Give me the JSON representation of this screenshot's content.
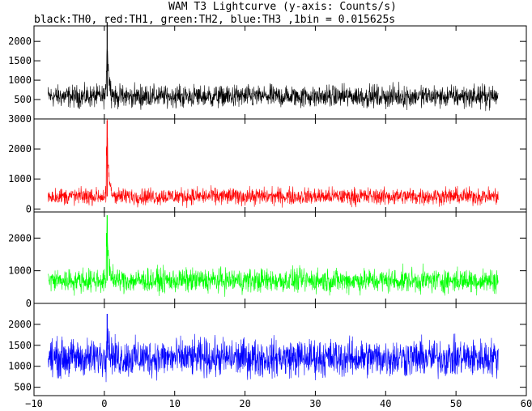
{
  "chart_data": {
    "type": "line",
    "title": "WAM T3 Lightcurve (y-axis: Counts/s)",
    "subtitle": "black:TH0, red:TH1, green:TH2, blue:TH3 ,1bin = 0.015625s",
    "xlim": [
      -10,
      60
    ],
    "x_ticks": [
      -10,
      0,
      10,
      20,
      30,
      40,
      50,
      60
    ],
    "x_tick_labels": [
      "−10",
      "0",
      "10",
      "20",
      "30",
      "40",
      "50",
      "60"
    ],
    "x_range_data": [
      -8.0,
      56.0
    ],
    "grid": false,
    "panels": [
      {
        "series": "TH0",
        "color": "#000000",
        "ylim": [
          0,
          2400
        ],
        "y_ticks": [
          500,
          1000,
          1500,
          2000
        ],
        "y_tick_labels": [
          "500",
          "1000",
          "1500",
          "2000"
        ],
        "baseline": 580,
        "noise_amplitude": 350,
        "peak": {
          "x": 0.4,
          "y": 2500
        }
      },
      {
        "series": "TH1",
        "color": "#ff0000",
        "ylim": [
          -100,
          3000
        ],
        "y_ticks": [
          0,
          1000,
          2000,
          3000
        ],
        "y_tick_labels": [
          "0",
          "1000",
          "2000",
          "3000"
        ],
        "baseline": 420,
        "noise_amplitude": 350,
        "peak": {
          "x": 0.4,
          "y": 2950
        }
      },
      {
        "series": "TH2",
        "color": "#00ff00",
        "ylim": [
          0,
          2800
        ],
        "y_ticks": [
          0,
          1000,
          2000
        ],
        "y_tick_labels": [
          "0",
          "1000",
          "2000"
        ],
        "baseline": 700,
        "noise_amplitude": 450,
        "peak": {
          "x": 0.4,
          "y": 2700
        }
      },
      {
        "series": "TH3",
        "color": "#0000ff",
        "ylim": [
          300,
          2500
        ],
        "y_ticks": [
          500,
          1000,
          1500,
          2000
        ],
        "y_tick_labels": [
          "500",
          "1000",
          "1500",
          "2000"
        ],
        "baseline": 1200,
        "noise_amplitude": 550,
        "peak": {
          "x": 0.4,
          "y": 2250
        }
      }
    ]
  }
}
